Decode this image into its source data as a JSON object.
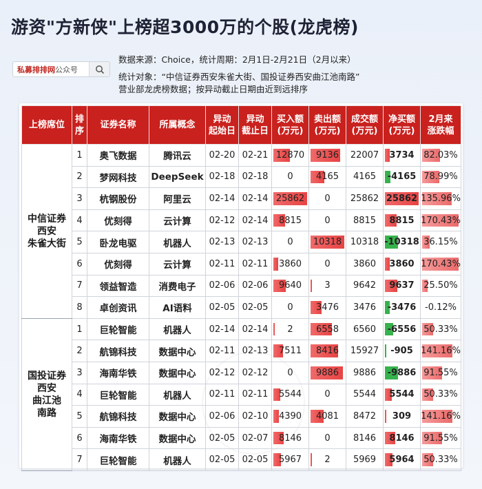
{
  "title": "游资\"方新侠\"上榜超3000万的个股(龙虎榜)",
  "search": {
    "brand": "私募排排网",
    "suffix": "公众号"
  },
  "meta": {
    "line1": "数据来源：Choice，统计周期：2月1日-2月21日（2月以来）",
    "line2": "统计对象：“中信证券西安朱雀大街、国投证券西安曲江池南路”",
    "line3": "营业部龙虎榜数据；按异动截止日期由近到远排序"
  },
  "colors": {
    "header": "#c9211e",
    "bar_red": "#e84343",
    "bar_green": "#37b24d"
  },
  "headers": [
    "上榜席位",
    "排序",
    "证券名称",
    "所属概念",
    "异动起始日",
    "异动截止日",
    "买入额(万元)",
    "卖出额(万元)",
    "成交额(万元)",
    "净买额(万元)",
    "2月来涨跌幅"
  ],
  "header_lines": [
    [
      "上榜席位"
    ],
    [
      "排",
      "序"
    ],
    [
      "证券名称"
    ],
    [
      "所属概念"
    ],
    [
      "异动",
      "起始日"
    ],
    [
      "异动",
      "截止日"
    ],
    [
      "买入额",
      "(万元)"
    ],
    [
      "卖出额",
      "(万元)"
    ],
    [
      "成交额",
      "(万元)"
    ],
    [
      "净买额",
      "(万元)"
    ],
    [
      "2月来",
      "涨跌幅"
    ]
  ],
  "groups": [
    {
      "seat_lines": [
        "中信证券",
        "西安",
        "朱雀大街"
      ],
      "rows": [
        {
          "rank": "1",
          "name": "奥飞数据",
          "concept": "腾讯云",
          "start": "02-20",
          "end": "02-21",
          "buy": "12870",
          "sell": "9136",
          "turnover": "22007",
          "net": "3734",
          "chg": "82.03%",
          "buy_v": 12870,
          "sell_v": 9136,
          "net_v": 3734,
          "chg_v": 82.03
        },
        {
          "rank": "2",
          "name": "梦网科技",
          "concept": "DeepSeek",
          "start": "02-18",
          "end": "02-18",
          "buy": "0",
          "sell": "4165",
          "turnover": "4165",
          "net": "-4165",
          "chg": "78.99%",
          "buy_v": 0,
          "sell_v": 4165,
          "net_v": -4165,
          "chg_v": 78.99
        },
        {
          "rank": "3",
          "name": "杭钢股份",
          "concept": "阿里云",
          "start": "02-14",
          "end": "02-14",
          "buy": "25862",
          "sell": "0",
          "turnover": "25862",
          "net": "25862",
          "chg": "135.96%",
          "buy_v": 25862,
          "sell_v": 0,
          "net_v": 25862,
          "chg_v": 135.96
        },
        {
          "rank": "4",
          "name": "优刻得",
          "concept": "云计算",
          "start": "02-12",
          "end": "02-14",
          "buy": "8815",
          "sell": "0",
          "turnover": "8815",
          "net": "8815",
          "chg": "170.43%",
          "buy_v": 8815,
          "sell_v": 0,
          "net_v": 8815,
          "chg_v": 170.43
        },
        {
          "rank": "5",
          "name": "卧龙电驱",
          "concept": "机器人",
          "start": "02-13",
          "end": "02-13",
          "buy": "0",
          "sell": "10318",
          "turnover": "10318",
          "net": "-10318",
          "chg": "36.15%",
          "buy_v": 0,
          "sell_v": 10318,
          "net_v": -10318,
          "chg_v": 36.15
        },
        {
          "rank": "6",
          "name": "优刻得",
          "concept": "云计算",
          "start": "02-11",
          "end": "02-11",
          "buy": "3860",
          "sell": "0",
          "turnover": "3860",
          "net": "3860",
          "chg": "170.43%",
          "buy_v": 3860,
          "sell_v": 0,
          "net_v": 3860,
          "chg_v": 170.43
        },
        {
          "rank": "7",
          "name": "领益智造",
          "concept": "消费电子",
          "start": "02-06",
          "end": "02-06",
          "buy": "9640",
          "sell": "3",
          "turnover": "9642",
          "net": "9637",
          "chg": "25.50%",
          "buy_v": 9640,
          "sell_v": 3,
          "net_v": 9637,
          "chg_v": 25.5
        },
        {
          "rank": "8",
          "name": "卓创资讯",
          "concept": "AI语料",
          "start": "02-05",
          "end": "02-05",
          "buy": "0",
          "sell": "3476",
          "turnover": "3476",
          "net": "-3476",
          "chg": "-0.12%",
          "buy_v": 0,
          "sell_v": 3476,
          "net_v": -3476,
          "chg_v": -0.12
        }
      ]
    },
    {
      "seat_lines": [
        "国投证券",
        "西安",
        "曲江池",
        "南路"
      ],
      "rows": [
        {
          "rank": "1",
          "name": "巨轮智能",
          "concept": "机器人",
          "start": "02-14",
          "end": "02-14",
          "buy": "2",
          "sell": "6558",
          "turnover": "6560",
          "net": "-6556",
          "chg": "50.33%",
          "buy_v": 2,
          "sell_v": 6558,
          "net_v": -6556,
          "chg_v": 50.33
        },
        {
          "rank": "2",
          "name": "航锦科技",
          "concept": "数据中心",
          "start": "02-11",
          "end": "02-13",
          "buy": "7511",
          "sell": "8416",
          "turnover": "15927",
          "net": "-905",
          "chg": "141.16%",
          "buy_v": 7511,
          "sell_v": 8416,
          "net_v": -905,
          "chg_v": 141.16
        },
        {
          "rank": "3",
          "name": "海南华铁",
          "concept": "数据中心",
          "start": "02-12",
          "end": "02-12",
          "buy": "0",
          "sell": "9886",
          "turnover": "9886",
          "net": "-9886",
          "chg": "91.55%",
          "buy_v": 0,
          "sell_v": 9886,
          "net_v": -9886,
          "chg_v": 91.55
        },
        {
          "rank": "4",
          "name": "巨轮智能",
          "concept": "机器人",
          "start": "02-11",
          "end": "02-11",
          "buy": "5544",
          "sell": "0",
          "turnover": "5544",
          "net": "5544",
          "chg": "50.33%",
          "buy_v": 5544,
          "sell_v": 0,
          "net_v": 5544,
          "chg_v": 50.33
        },
        {
          "rank": "5",
          "name": "航锦科技",
          "concept": "数据中心",
          "start": "02-06",
          "end": "02-10",
          "buy": "4390",
          "sell": "4081",
          "turnover": "8472",
          "net": "309",
          "chg": "141.16%",
          "buy_v": 4390,
          "sell_v": 4081,
          "net_v": 309,
          "chg_v": 141.16
        },
        {
          "rank": "6",
          "name": "海南华铁",
          "concept": "数据中心",
          "start": "02-05",
          "end": "02-07",
          "buy": "8146",
          "sell": "0",
          "turnover": "8146",
          "net": "8146",
          "chg": "91.55%",
          "buy_v": 8146,
          "sell_v": 0,
          "net_v": 8146,
          "chg_v": 91.55
        },
        {
          "rank": "7",
          "name": "巨轮智能",
          "concept": "机器人",
          "start": "02-05",
          "end": "02-05",
          "buy": "5967",
          "sell": "2",
          "turnover": "5969",
          "net": "5964",
          "chg": "50.33%",
          "buy_v": 5967,
          "sell_v": 2,
          "net_v": 5964,
          "chg_v": 50.33
        }
      ]
    }
  ]
}
